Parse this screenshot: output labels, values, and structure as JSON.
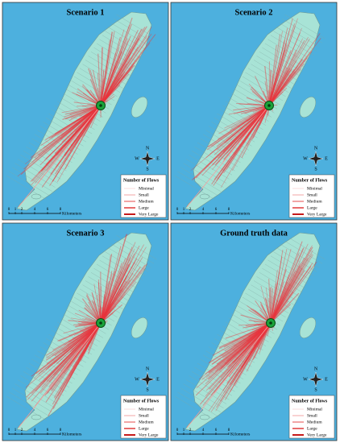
{
  "panels": [
    {
      "title": "Scenario 1"
    },
    {
      "title": "Scenario 2"
    },
    {
      "title": "Scenario 3"
    },
    {
      "title": "Ground truth data"
    }
  ],
  "legend": {
    "title": "Number of Flows",
    "items": [
      "Minimal",
      "Small",
      "Medium",
      "Large",
      "Very Large"
    ]
  },
  "compass": {
    "north": "N",
    "south": "S",
    "east": "E",
    "west": "W"
  },
  "scale": {
    "ticks": [
      0,
      1,
      2,
      4,
      6,
      8
    ],
    "unit": "Kilometers"
  }
}
